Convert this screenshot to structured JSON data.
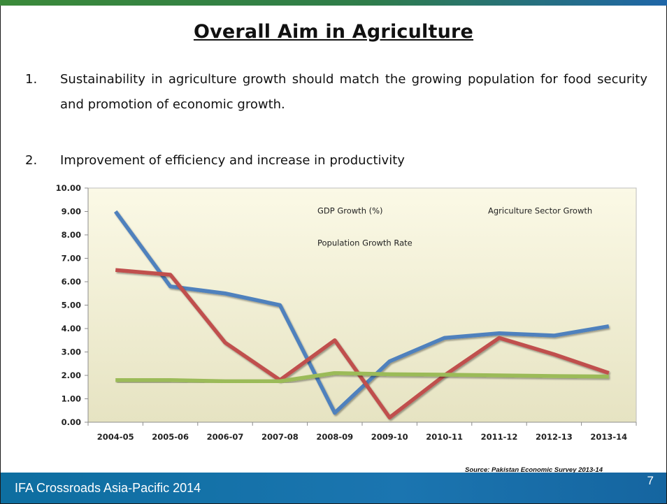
{
  "slide": {
    "title": "Overall Aim in Agriculture",
    "points": [
      {
        "num": "1.",
        "text": "Sustainability in agriculture growth should match the growing population for food security and promotion of economic growth."
      },
      {
        "num": "2.",
        "text": "Improvement of efficiency and increase in productivity"
      }
    ],
    "source": "Source: Pakistan Economic Survey 2013-14",
    "footer_left": "IFA Crossroads Asia-Pacific 2014",
    "page_number": "7"
  },
  "colors": {
    "gdp": "#4f81bd",
    "agri": "#c0504d",
    "population": "#9bbb59",
    "plot_bg_top": "#fbf9e6",
    "plot_bg_bottom": "#e6e3c2"
  },
  "chart_data": {
    "type": "line",
    "categories": [
      "2004-05",
      "2005-06",
      "2006-07",
      "2007-08",
      "2008-09",
      "2009-10",
      "2010-11",
      "2011-12",
      "2012-13",
      "2013-14"
    ],
    "ylim": [
      0,
      10
    ],
    "yticks": [
      "0.00",
      "1.00",
      "2.00",
      "3.00",
      "4.00",
      "5.00",
      "6.00",
      "7.00",
      "8.00",
      "9.00",
      "10.00"
    ],
    "grid": false,
    "legend_position": "top-right",
    "series": [
      {
        "name": "GDP Growth (%)",
        "color": "#4f81bd",
        "values": [
          9.0,
          5.8,
          5.5,
          5.0,
          0.4,
          2.6,
          3.6,
          3.8,
          3.7,
          4.1
        ]
      },
      {
        "name": "Agriculture Sector Growth",
        "color": "#c0504d",
        "values": [
          6.5,
          6.3,
          3.4,
          1.8,
          3.5,
          0.2,
          2.0,
          3.6,
          2.9,
          2.1
        ]
      },
      {
        "name": "Population Growth Rate",
        "color": "#9bbb59",
        "values": [
          1.8,
          1.8,
          1.75,
          1.75,
          2.1,
          2.05,
          2.03,
          2.0,
          1.97,
          1.95
        ]
      }
    ]
  }
}
